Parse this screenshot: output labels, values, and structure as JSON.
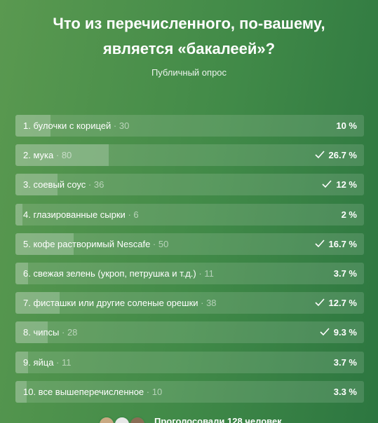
{
  "header": {
    "title": "Что из перечисленного, по-вашему, является «бакалеей»?",
    "subtitle": "Публичный опрос"
  },
  "options": [
    {
      "label": "1. булочки с корицей",
      "votes": 30,
      "percent": 10,
      "percent_label": "10 %",
      "checked": false
    },
    {
      "label": "2. мука",
      "votes": 80,
      "percent": 26.7,
      "percent_label": "26.7 %",
      "checked": true
    },
    {
      "label": "3. соевый соус",
      "votes": 36,
      "percent": 12,
      "percent_label": "12 %",
      "checked": true
    },
    {
      "label": "4. глазированные сырки",
      "votes": 6,
      "percent": 2,
      "percent_label": "2 %",
      "checked": false
    },
    {
      "label": "5. кофе растворимый Nescafe",
      "votes": 50,
      "percent": 16.7,
      "percent_label": "16.7 %",
      "checked": true
    },
    {
      "label": "6. свежая зелень (укроп, петрушка и т.д.)",
      "votes": 11,
      "percent": 3.7,
      "percent_label": "3.7 %",
      "checked": false
    },
    {
      "label": "7. фисташки или другие соленые орешки",
      "votes": 38,
      "percent": 12.7,
      "percent_label": "12.7 %",
      "checked": true
    },
    {
      "label": "8. чипсы",
      "votes": 28,
      "percent": 9.3,
      "percent_label": "9.3 %",
      "checked": true
    },
    {
      "label": "9. яйца",
      "votes": 11,
      "percent": 3.7,
      "percent_label": "3.7 %",
      "checked": false
    },
    {
      "label": "10. все вышеперечисленное",
      "votes": 10,
      "percent": 3.3,
      "percent_label": "3.3 %",
      "checked": false
    }
  ],
  "footer": {
    "voters": "Проголосовали 128 человек"
  }
}
